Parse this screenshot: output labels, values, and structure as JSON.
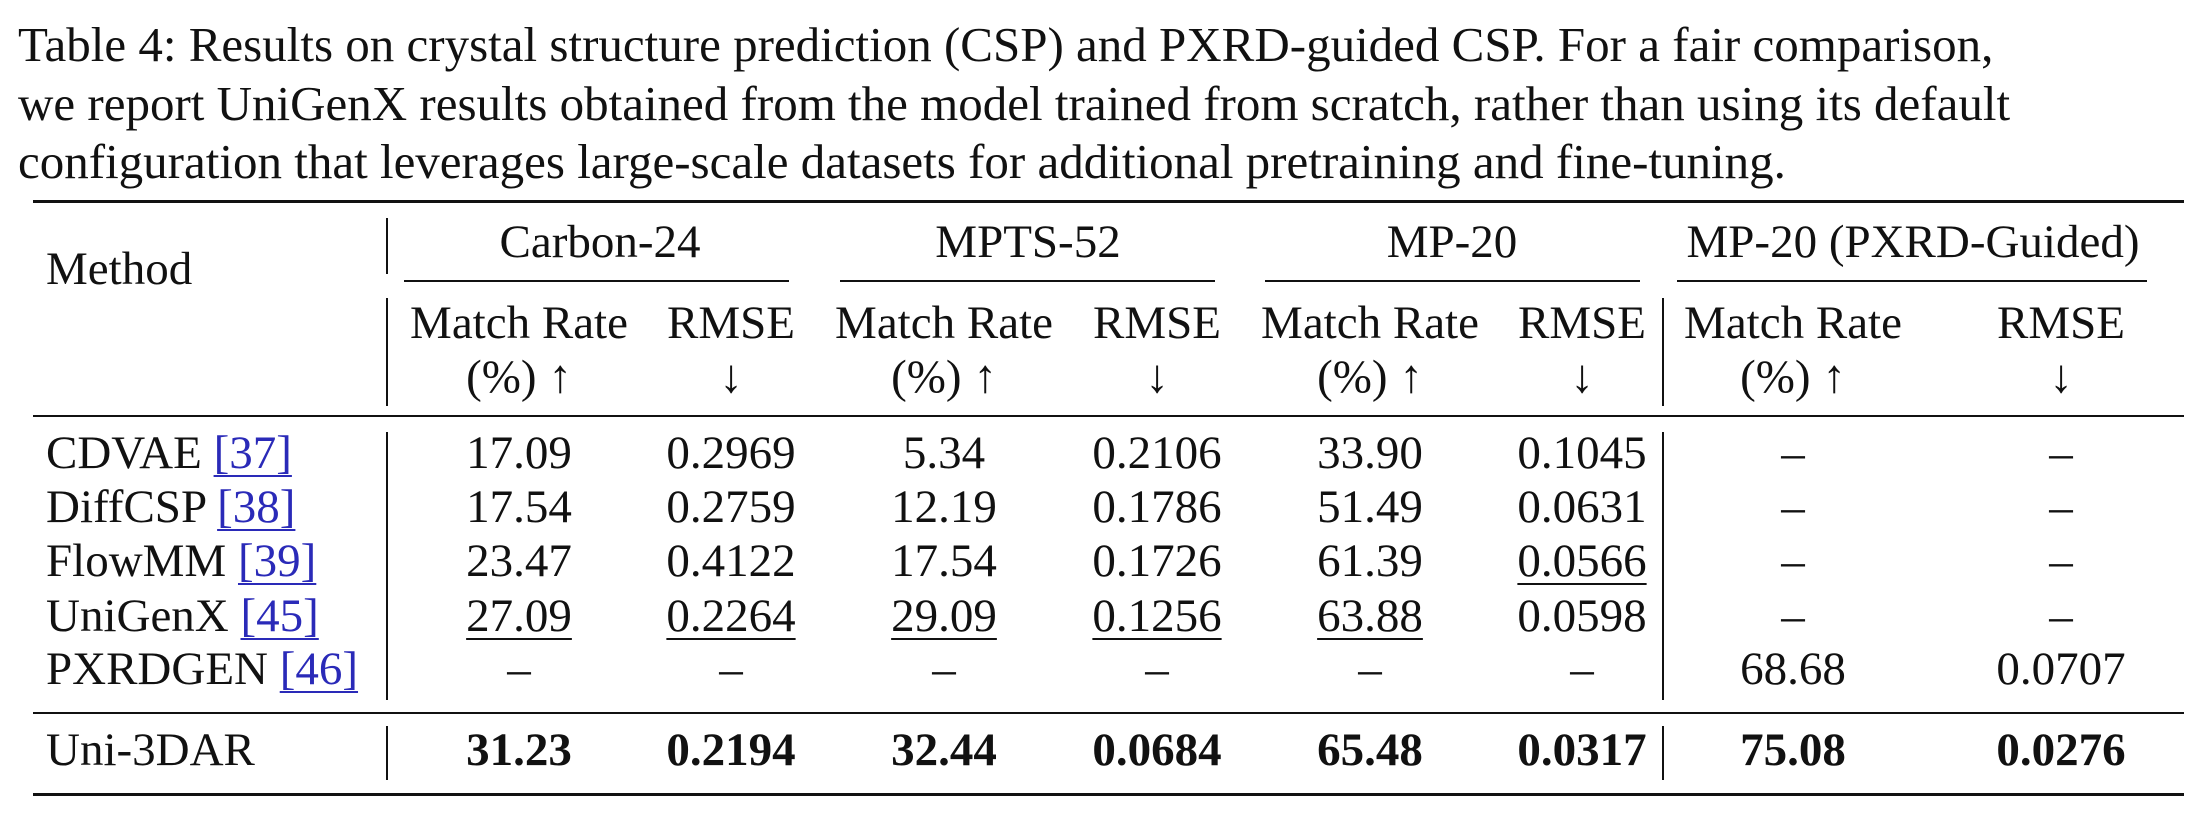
{
  "caption": {
    "lines": [
      "Table 4: Results on crystal structure prediction (CSP) and PXRD-guided CSP. For a fair comparison,",
      "we report UniGenX results obtained from the model trained from scratch, rather than using its default",
      "configuration that leverages large-scale datasets for additional pretraining and fine-tuning."
    ]
  },
  "table": {
    "method_header": "Method",
    "groups": [
      "Carbon-24",
      "MPTS-52",
      "MP-20",
      "MP-20 (PXRD-Guided)"
    ],
    "sub_headers": {
      "match_rate_line1": "Match Rate",
      "match_rate_line2": "(%) ↑",
      "rmse_line1": "RMSE",
      "rmse_line2": "↓"
    },
    "rows": [
      {
        "method": "CDVAE",
        "cite": "[37]",
        "values": [
          "17.09",
          "0.2969",
          "5.34",
          "0.2106",
          "33.90",
          "0.1045",
          "–",
          "–"
        ]
      },
      {
        "method": "DiffCSP",
        "cite": "[38]",
        "values": [
          "17.54",
          "0.2759",
          "12.19",
          "0.1786",
          "51.49",
          "0.0631",
          "–",
          "–"
        ]
      },
      {
        "method": "FlowMM",
        "cite": "[39]",
        "values": [
          "23.47",
          "0.4122",
          "17.54",
          "0.1726",
          "61.39",
          "0.0566",
          "–",
          "–"
        ]
      },
      {
        "method": "UniGenX",
        "cite": "[45]",
        "values": [
          "27.09",
          "0.2264",
          "29.09",
          "0.1256",
          "63.88",
          "0.0598",
          "–",
          "–"
        ]
      },
      {
        "method": "PXRDGEN",
        "cite": "[46]",
        "values": [
          "–",
          "–",
          "–",
          "–",
          "–",
          "–",
          "68.68",
          "0.0707"
        ]
      }
    ],
    "final_row": {
      "method": "Uni-3DAR",
      "values": [
        "31.23",
        "0.2194",
        "32.44",
        "0.0684",
        "65.48",
        "0.0317",
        "75.08",
        "0.0276"
      ]
    }
  }
}
